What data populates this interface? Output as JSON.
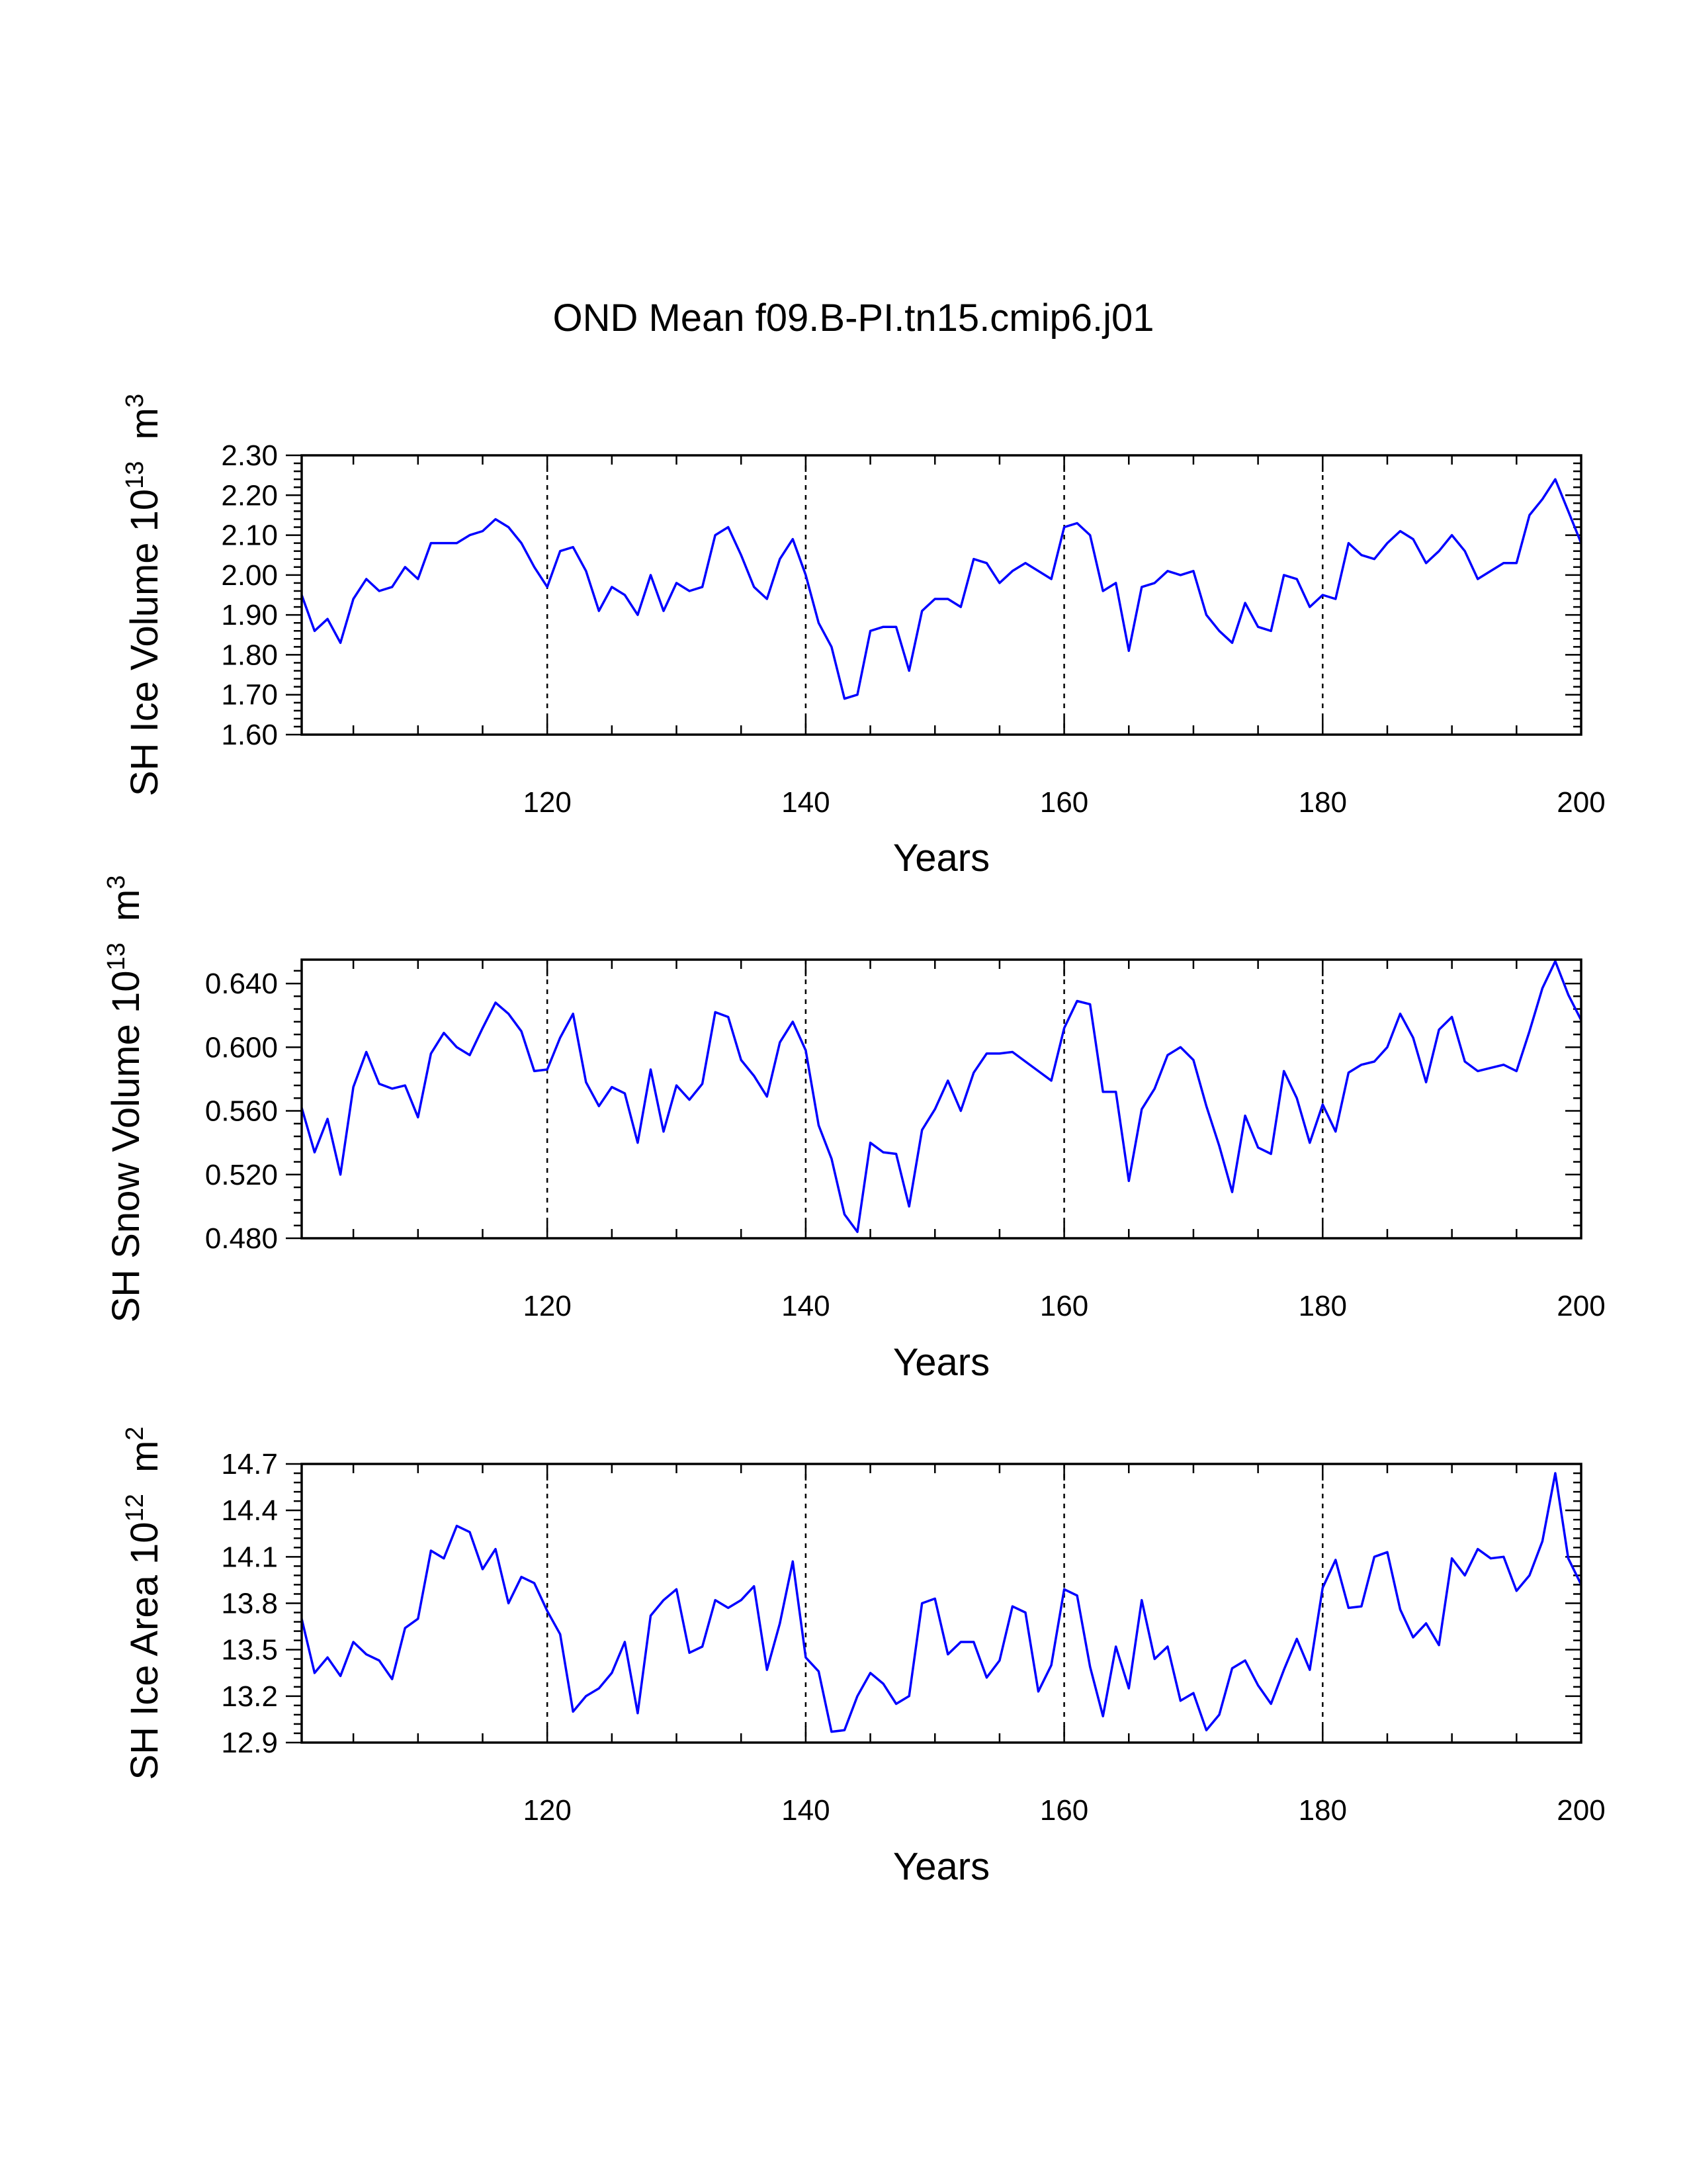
{
  "figure": {
    "title": "OND Mean f09.B-PI.tn15.cmip6.j01"
  },
  "colors": {
    "series": "#0000ff",
    "axis": "#000000",
    "reference_lines": "#000000",
    "background": "#ffffff"
  },
  "chart_data": [
    {
      "type": "line",
      "title": "",
      "xlabel": "Years",
      "ylabel_prefix": "SH Ice Volume 10",
      "ylabel_exponent": "13",
      "ylabel_unit": "m",
      "ylabel_unit_exponent": "3",
      "xlim": [
        101,
        200
      ],
      "ylim": [
        1.6,
        2.3
      ],
      "xticks": [
        120,
        140,
        160,
        180,
        200
      ],
      "xtick_labels": [
        "120",
        "140",
        "160",
        "180",
        "200"
      ],
      "yticks": [
        1.6,
        1.7,
        1.8,
        1.9,
        2.0,
        2.1,
        2.2,
        2.3
      ],
      "ytick_labels": [
        "1.60",
        "1.70",
        "1.80",
        "1.90",
        "2.00",
        "2.10",
        "2.20",
        "2.30"
      ],
      "reference_lines_x": [
        120,
        140,
        160,
        180
      ],
      "grid": false,
      "x_start": 101,
      "x_step": 1,
      "series": [
        {
          "values": [
            1.95,
            1.86,
            1.89,
            1.83,
            1.94,
            1.99,
            1.96,
            1.97,
            2.02,
            1.99,
            2.08,
            2.08,
            2.08,
            2.1,
            2.11,
            2.14,
            2.12,
            2.08,
            2.02,
            1.97,
            2.06,
            2.07,
            2.01,
            1.91,
            1.97,
            1.95,
            1.9,
            2.0,
            1.91,
            1.98,
            1.96,
            1.97,
            2.1,
            2.12,
            2.05,
            1.97,
            1.94,
            2.04,
            2.09,
            2.0,
            1.88,
            1.82,
            1.69,
            1.7,
            1.86,
            1.87,
            1.87,
            1.76,
            1.91,
            1.94,
            1.94,
            1.92,
            2.04,
            2.03,
            1.98,
            2.01,
            2.03,
            2.01,
            1.99,
            2.12,
            2.13,
            2.1,
            1.96,
            1.98,
            1.81,
            1.97,
            1.98,
            2.01,
            2.0,
            2.01,
            1.9,
            1.86,
            1.83,
            1.93,
            1.87,
            1.86,
            2.0,
            1.99,
            1.92,
            1.95,
            1.94,
            2.08,
            2.05,
            2.04,
            2.08,
            2.11,
            2.09,
            2.03,
            2.06,
            2.1,
            2.06,
            1.99,
            2.01,
            2.03,
            2.03,
            2.15,
            2.19,
            2.24,
            2.16,
            2.08
          ]
        }
      ]
    },
    {
      "type": "line",
      "title": "",
      "xlabel": "Years",
      "ylabel_prefix": "SH Snow Volume 10",
      "ylabel_exponent": "13",
      "ylabel_unit": "m",
      "ylabel_unit_exponent": "3",
      "xlim": [
        101,
        200
      ],
      "ylim": [
        0.48,
        0.655
      ],
      "xticks": [
        120,
        140,
        160,
        180,
        200
      ],
      "xtick_labels": [
        "120",
        "140",
        "160",
        "180",
        "200"
      ],
      "yticks": [
        0.48,
        0.52,
        0.56,
        0.6,
        0.64
      ],
      "ytick_labels": [
        "0.480",
        "0.520",
        "0.560",
        "0.600",
        "0.640"
      ],
      "reference_lines_x": [
        120,
        140,
        160,
        180
      ],
      "grid": false,
      "x_start": 101,
      "x_step": 1,
      "series": [
        {
          "values": [
            0.562,
            0.534,
            0.555,
            0.52,
            0.575,
            0.597,
            0.577,
            0.574,
            0.576,
            0.556,
            0.596,
            0.609,
            0.6,
            0.595,
            0.612,
            0.628,
            0.621,
            0.61,
            0.585,
            0.586,
            0.606,
            0.621,
            0.578,
            0.563,
            0.575,
            0.571,
            0.54,
            0.586,
            0.547,
            0.576,
            0.567,
            0.577,
            0.622,
            0.619,
            0.592,
            0.582,
            0.569,
            0.603,
            0.616,
            0.598,
            0.551,
            0.53,
            0.495,
            0.484,
            0.54,
            0.534,
            0.533,
            0.5,
            0.548,
            0.561,
            0.579,
            0.56,
            0.584,
            0.596,
            0.596,
            0.597,
            0.591,
            0.585,
            0.579,
            0.612,
            0.629,
            0.627,
            0.572,
            0.572,
            0.516,
            0.561,
            0.574,
            0.595,
            0.6,
            0.592,
            0.563,
            0.538,
            0.509,
            0.557,
            0.537,
            0.533,
            0.585,
            0.568,
            0.54,
            0.564,
            0.547,
            0.584,
            0.589,
            0.591,
            0.6,
            0.621,
            0.606,
            0.578,
            0.611,
            0.619,
            0.591,
            0.585,
            0.587,
            0.589,
            0.585,
            0.61,
            0.637,
            0.654,
            0.633,
            0.617
          ]
        }
      ]
    },
    {
      "type": "line",
      "title": "",
      "xlabel": "Years",
      "ylabel_prefix": "SH Ice Area 10",
      "ylabel_exponent": "12",
      "ylabel_unit": "m",
      "ylabel_unit_exponent": "2",
      "xlim": [
        101,
        200
      ],
      "ylim": [
        12.9,
        14.7
      ],
      "xticks": [
        120,
        140,
        160,
        180,
        200
      ],
      "xtick_labels": [
        "120",
        "140",
        "160",
        "180",
        "200"
      ],
      "yticks": [
        12.9,
        13.2,
        13.5,
        13.8,
        14.1,
        14.4,
        14.7
      ],
      "ytick_labels": [
        "12.9",
        "13.2",
        "13.5",
        "13.8",
        "14.1",
        "14.4",
        "14.7"
      ],
      "reference_lines_x": [
        120,
        140,
        160,
        180
      ],
      "grid": false,
      "x_start": 101,
      "x_step": 1,
      "series": [
        {
          "values": [
            13.7,
            13.35,
            13.45,
            13.33,
            13.55,
            13.47,
            13.43,
            13.31,
            13.64,
            13.7,
            14.14,
            14.09,
            14.3,
            14.26,
            14.02,
            14.15,
            13.8,
            13.97,
            13.93,
            13.75,
            13.6,
            13.1,
            13.2,
            13.25,
            13.35,
            13.55,
            13.09,
            13.72,
            13.82,
            13.89,
            13.48,
            13.52,
            13.82,
            13.77,
            13.82,
            13.91,
            13.37,
            13.67,
            14.07,
            13.45,
            13.36,
            12.97,
            12.98,
            13.2,
            13.35,
            13.28,
            13.15,
            13.2,
            13.8,
            13.83,
            13.47,
            13.55,
            13.55,
            13.32,
            13.43,
            13.78,
            13.74,
            13.23,
            13.4,
            13.89,
            13.85,
            13.39,
            13.07,
            13.52,
            13.25,
            13.82,
            13.44,
            13.52,
            13.17,
            13.22,
            12.98,
            13.08,
            13.38,
            13.43,
            13.27,
            13.15,
            13.37,
            13.57,
            13.37,
            13.9,
            14.08,
            13.77,
            13.78,
            14.1,
            14.13,
            13.76,
            13.58,
            13.67,
            13.53,
            14.09,
            13.98,
            14.15,
            14.09,
            14.1,
            13.88,
            13.98,
            14.2,
            14.64,
            14.09,
            13.92
          ]
        }
      ]
    }
  ]
}
